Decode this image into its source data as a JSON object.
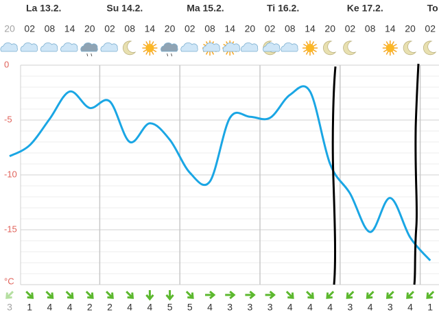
{
  "chart_data": {
    "type": "line",
    "days": [
      "La 13.2.",
      "Su 14.2.",
      "Ma 15.2.",
      "Ti 16.2.",
      "Ke 17.2.",
      "To"
    ],
    "categories": [
      "20",
      "02",
      "08",
      "14",
      "20",
      "02",
      "08",
      "14",
      "20",
      "02",
      "08",
      "14",
      "20",
      "02",
      "08",
      "14",
      "20",
      "02",
      "08",
      "14",
      "20",
      "02"
    ],
    "series": [
      {
        "color": "#1aa6e4",
        "values": [
          -8.3,
          -7.3,
          -4.9,
          -2.4,
          -3.9,
          -3.3,
          -7.0,
          -5.3,
          -6.8,
          -9.8,
          -10.6,
          -4.8,
          -4.7,
          -4.8,
          -2.7,
          -2.4,
          -9.0,
          -11.7,
          -15.2,
          -12.1,
          -15.7,
          -17.8
        ]
      }
    ],
    "ylim": [
      -20,
      0
    ],
    "yticks": [
      0,
      -5,
      -10,
      -15,
      {
        "value": -20,
        "label": "°C"
      }
    ],
    "grid": true,
    "wind_directions": [
      135,
      45,
      45,
      45,
      45,
      45,
      45,
      90,
      90,
      45,
      0,
      0,
      0,
      0,
      45,
      45,
      135,
      135,
      135,
      135,
      135,
      135
    ],
    "wind_speeds": [
      3,
      1,
      4,
      4,
      2,
      2,
      4,
      4,
      5,
      5,
      4,
      3,
      3,
      3,
      4,
      4,
      4,
      3,
      4,
      3,
      4,
      1
    ]
  }
}
